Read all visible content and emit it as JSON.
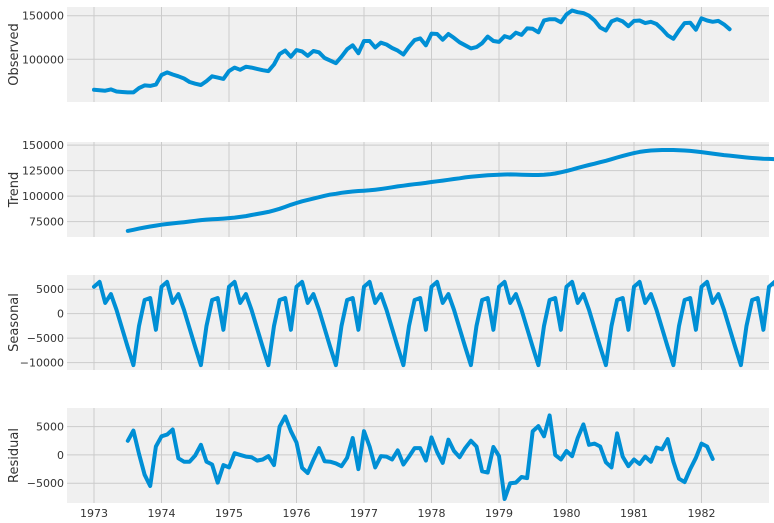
{
  "figure": {
    "x_ticks": [
      "1973",
      "1974",
      "1975",
      "1976",
      "1977",
      "1978",
      "1979",
      "1980",
      "1981",
      "1982"
    ],
    "line_color": "#008fd5",
    "panel_bg": "#f0f0f0",
    "grid_color": "#cbcbcb"
  },
  "chart_data": [
    {
      "type": "line",
      "ylabel": "Observed",
      "ylim": [
        51000,
        160000
      ],
      "y_ticks": [
        {
          "value": 100000,
          "label": "100000"
        },
        {
          "value": 150000,
          "label": "150000"
        }
      ],
      "series": [
        {
          "x_start": 1973.0,
          "x_step": 0.0833333,
          "values": [
            65000,
            64500,
            64000,
            65500,
            63000,
            62500,
            62000,
            62000,
            67000,
            70000,
            69500,
            71000,
            82000,
            85000,
            82500,
            80500,
            78000,
            74000,
            72000,
            70500,
            75000,
            80500,
            79000,
            77500,
            86500,
            90500,
            88000,
            91500,
            90500,
            89000,
            87500,
            86500,
            94000,
            106000,
            110000,
            103000,
            110500,
            109000,
            104000,
            109500,
            108000,
            101500,
            98500,
            95500,
            103000,
            111500,
            116000,
            107000,
            121000,
            121000,
            113500,
            119000,
            117000,
            113000,
            110000,
            105500,
            114500,
            122000,
            124000,
            116000,
            129500,
            129000,
            122500,
            129000,
            124500,
            119500,
            116000,
            112500,
            114000,
            118500,
            126000,
            121000,
            120000,
            126500,
            124500,
            130500,
            128000,
            135500,
            135000,
            131000,
            144500,
            146000,
            146000,
            142500,
            151500,
            156000,
            154000,
            153000,
            150000,
            144500,
            136500,
            133000,
            143500,
            146000,
            143500,
            138000,
            144000,
            144500,
            141500,
            143000,
            140500,
            134500,
            127500,
            123500,
            133000,
            141500,
            142000,
            134000,
            147000,
            144500,
            143000,
            144000,
            140000,
            134500
          ]
        }
      ]
    },
    {
      "type": "line",
      "ylabel": "Trend",
      "ylim": [
        60000,
        153000
      ],
      "y_ticks": [
        {
          "value": 75000,
          "label": "75000"
        },
        {
          "value": 100000,
          "label": "100000"
        },
        {
          "value": 125000,
          "label": "125000"
        },
        {
          "value": 150000,
          "label": "150000"
        }
      ],
      "series": [
        {
          "x_start": 1973.5,
          "x_step": 0.0833333,
          "values": [
            66000,
            67000,
            68200,
            69300,
            70300,
            71200,
            72000,
            72700,
            73300,
            73900,
            74500,
            75200,
            75900,
            76500,
            77000,
            77300,
            77600,
            78000,
            78500,
            79000,
            79700,
            80500,
            81500,
            82500,
            83500,
            84600,
            86000,
            87600,
            89500,
            91500,
            93300,
            94900,
            96300,
            97600,
            99000,
            100300,
            101500,
            102300,
            103300,
            104000,
            104500,
            105000,
            105300,
            105700,
            106300,
            107000,
            107800,
            108700,
            109500,
            110200,
            111000,
            111700,
            112300,
            113000,
            113800,
            114500,
            115200,
            116000,
            116800,
            117500,
            118300,
            118900,
            119500,
            120000,
            120500,
            120700,
            121000,
            121200,
            121300,
            121200,
            121000,
            120800,
            120700,
            120700,
            120900,
            121400,
            122200,
            123300,
            124600,
            126000,
            127600,
            129100,
            130500,
            131800,
            133200,
            134600,
            136200,
            137800,
            139400,
            140900,
            142100,
            143300,
            144100,
            144700,
            145000,
            145200,
            145200,
            145200,
            145000,
            144700,
            144300,
            143700,
            143100,
            142300,
            141600,
            140900,
            140200,
            139700,
            139100,
            138400,
            137800,
            137300,
            136900,
            136600,
            136500,
            136300,
            136300,
            136300,
            136300,
            136300,
            136300,
            136300,
            136300
          ]
        }
      ]
    },
    {
      "type": "line",
      "ylabel": "Seasonal",
      "ylim": [
        -11500,
        7900
      ],
      "y_ticks": [
        {
          "value": -10000,
          "label": "−10000"
        },
        {
          "value": -5000,
          "label": "−5000"
        },
        {
          "value": 0,
          "label": "0"
        },
        {
          "value": 5000,
          "label": "5000"
        }
      ],
      "series": [
        {
          "x_start": 1973.0,
          "x_step": 0.0833333,
          "values": [
            5500,
            6500,
            2200,
            4000,
            800,
            -3000,
            -6800,
            -10500,
            -2500,
            2800,
            3200,
            -3300,
            5500,
            6500,
            2200,
            4000,
            800,
            -3000,
            -6800,
            -10500,
            -2500,
            2800,
            3200,
            -3300,
            5500,
            6500,
            2200,
            4000,
            800,
            -3000,
            -6800,
            -10500,
            -2500,
            2800,
            3200,
            -3300,
            5500,
            6500,
            2200,
            4000,
            800,
            -3000,
            -6800,
            -10500,
            -2500,
            2800,
            3200,
            -3300,
            5500,
            6500,
            2200,
            4000,
            800,
            -3000,
            -6800,
            -10500,
            -2500,
            2800,
            3200,
            -3300,
            5500,
            6500,
            2200,
            4000,
            800,
            -3000,
            -6800,
            -10500,
            -2500,
            2800,
            3200,
            -3300,
            5500,
            6500,
            2200,
            4000,
            800,
            -3000,
            -6800,
            -10500,
            -2500,
            2800,
            3200,
            -3300,
            5500,
            6500,
            2200,
            4000,
            800,
            -3000,
            -6800,
            -10500,
            -2500,
            2800,
            3200,
            -3300,
            5500,
            6500,
            2200,
            4000,
            800,
            -3000,
            -6800,
            -10500,
            -2500,
            2800,
            3200,
            -3300,
            5500,
            6500,
            2200,
            4000,
            800,
            -3000,
            -6800,
            -10500,
            -2500,
            2800,
            3200,
            -3300,
            5500,
            6500,
            2200,
            4000,
            800,
            -3000
          ]
        }
      ]
    },
    {
      "type": "line",
      "ylabel": "Residual",
      "ylim": [
        -8500,
        8300
      ],
      "y_ticks": [
        {
          "value": -5000,
          "label": "−5000"
        },
        {
          "value": 0,
          "label": "0"
        },
        {
          "value": 5000,
          "label": "5000"
        }
      ],
      "series": [
        {
          "x_start": 1973.5,
          "x_step": 0.0833333,
          "values": [
            2500,
            4300,
            200,
            -3500,
            -5500,
            1500,
            3300,
            3600,
            4500,
            -600,
            -1200,
            -1200,
            -100,
            1800,
            -1200,
            -1700,
            -4900,
            -1800,
            -2200,
            300,
            0,
            -300,
            -400,
            -1000,
            -800,
            -200,
            -1800,
            5000,
            6800,
            4200,
            2200,
            -2300,
            -3200,
            -900,
            1200,
            -1100,
            -1200,
            -1500,
            -2000,
            -500,
            3000,
            -2500,
            4200,
            1500,
            -2200,
            -200,
            -300,
            -800,
            800,
            -1700,
            -300,
            1200,
            1200,
            -1000,
            3100,
            500,
            -1400,
            2700,
            700,
            -400,
            1200,
            2500,
            1500,
            -2900,
            -3100,
            1400,
            -200,
            -7800,
            -5000,
            -4900,
            -3900,
            -4100,
            4200,
            5100,
            3300,
            7000,
            0,
            -800,
            700,
            -200,
            3000,
            5400,
            1800,
            2000,
            1500,
            -1300,
            -2200,
            3800,
            -300,
            -2000,
            -800,
            -1600,
            -300,
            -1200,
            1300,
            1000,
            2800,
            -1200,
            -4200,
            -4800,
            -2500,
            -500,
            2000,
            1500,
            -700
          ]
        }
      ]
    }
  ]
}
